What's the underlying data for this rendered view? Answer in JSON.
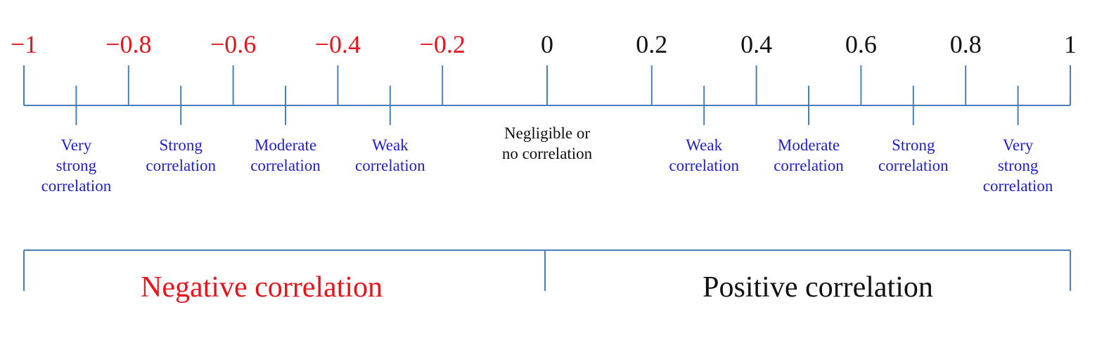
{
  "colors": {
    "axis": "#4a7ebb",
    "negative": "#e8141c",
    "positive": "#111111",
    "category": "#2020c8",
    "neutral": "#111111"
  },
  "scale": {
    "min": -1,
    "max": 1,
    "ticks": [
      {
        "value": -1,
        "label": "−1"
      },
      {
        "value": -0.8,
        "label": "−0.8"
      },
      {
        "value": -0.6,
        "label": "−0.6"
      },
      {
        "value": -0.4,
        "label": "−0.4"
      },
      {
        "value": -0.2,
        "label": "−0.2"
      },
      {
        "value": 0,
        "label": "0"
      },
      {
        "value": 0.2,
        "label": "0.2"
      },
      {
        "value": 0.4,
        "label": "0.4"
      },
      {
        "value": 0.6,
        "label": "0.6"
      },
      {
        "value": 0.8,
        "label": "0.8"
      },
      {
        "value": 1,
        "label": "1"
      }
    ]
  },
  "categories": [
    {
      "value": -0.9,
      "lines": [
        "Very",
        "strong",
        "correlation"
      ],
      "tone": "category"
    },
    {
      "value": -0.7,
      "lines": [
        "Strong",
        "correlation"
      ],
      "tone": "category"
    },
    {
      "value": -0.5,
      "lines": [
        "Moderate",
        "correlation"
      ],
      "tone": "category"
    },
    {
      "value": -0.3,
      "lines": [
        "Weak",
        "correlation"
      ],
      "tone": "category"
    },
    {
      "value": 0,
      "lines": [
        "Negligible or",
        "no correlation"
      ],
      "tone": "neutral"
    },
    {
      "value": 0.3,
      "lines": [
        "Weak",
        "correlation"
      ],
      "tone": "category"
    },
    {
      "value": 0.5,
      "lines": [
        "Moderate",
        "correlation"
      ],
      "tone": "category"
    },
    {
      "value": 0.7,
      "lines": [
        "Strong",
        "correlation"
      ],
      "tone": "category"
    },
    {
      "value": 0.9,
      "lines": [
        "Very",
        "strong",
        "correlation"
      ],
      "tone": "category"
    }
  ],
  "sides": {
    "negative": "Negative correlation",
    "positive": "Positive correlation"
  }
}
